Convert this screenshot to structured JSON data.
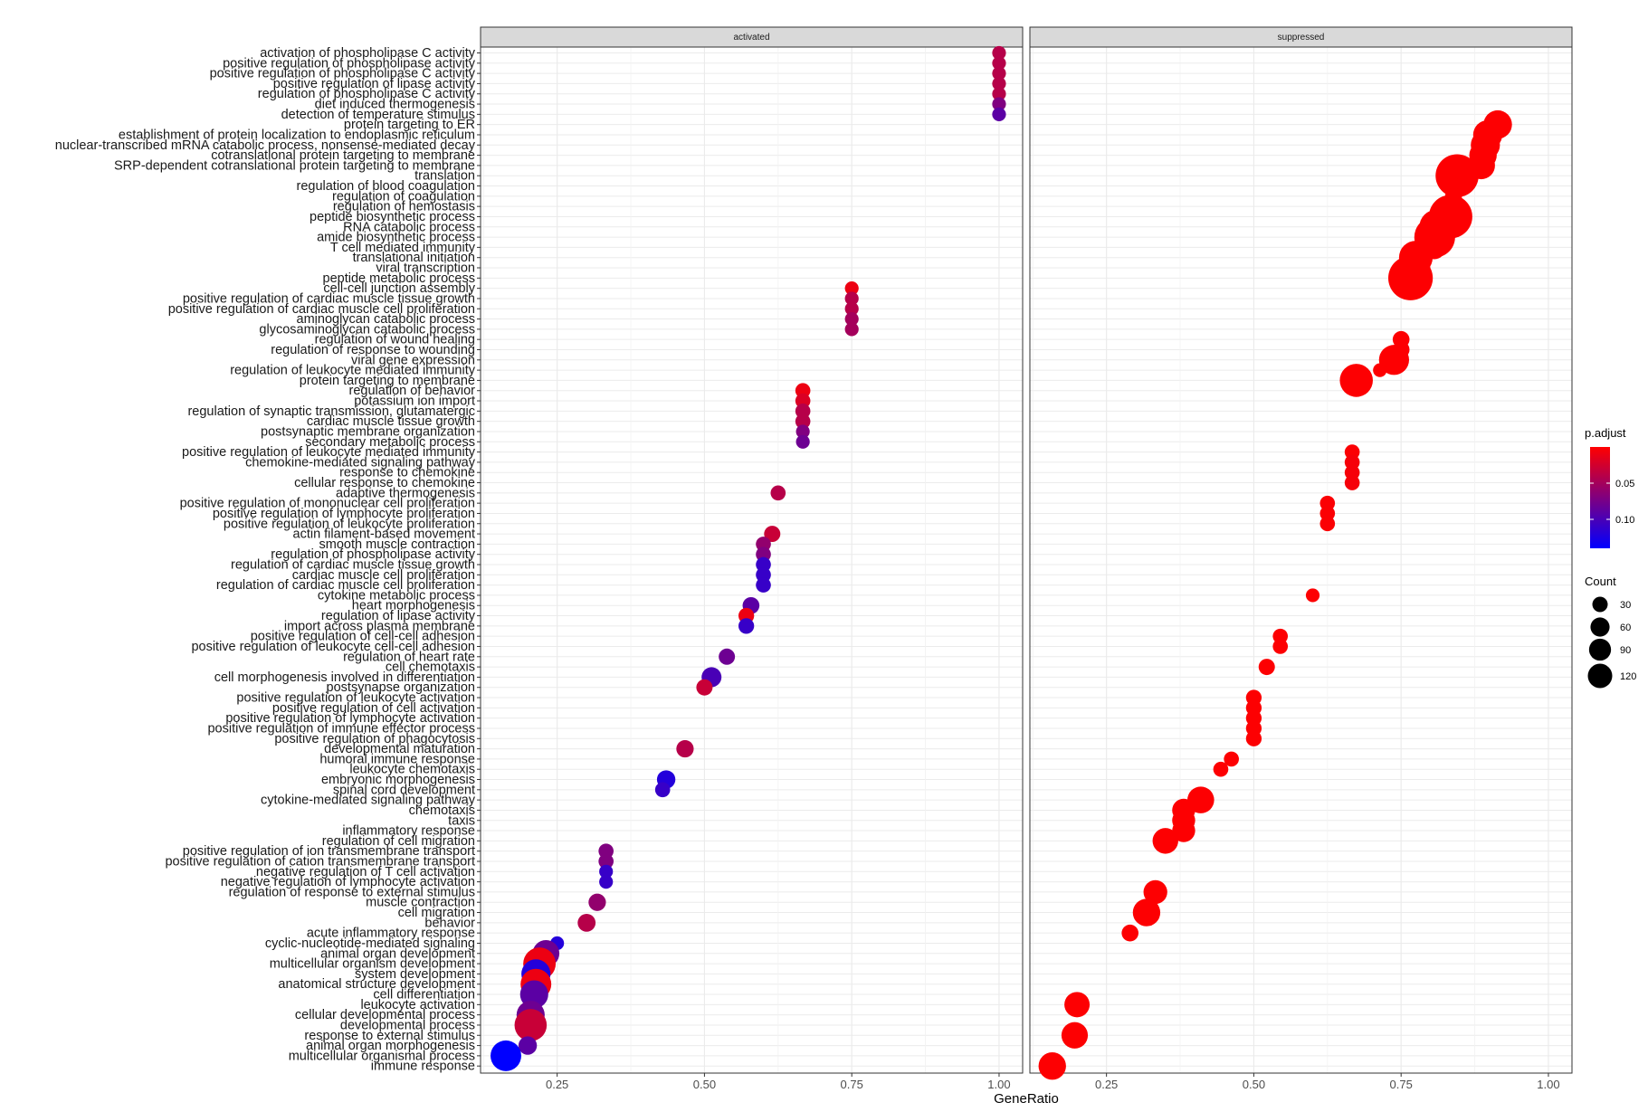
{
  "chart_data": {
    "type": "scatter",
    "facets": [
      "activated",
      "suppressed"
    ],
    "xlabel": "GeneRatio",
    "xlim": [
      0.12,
      1.04
    ],
    "xticks": [
      0.25,
      0.5,
      0.75,
      1.0
    ],
    "xtick_labels": [
      "0.25",
      "0.50",
      "0.75",
      "1.00"
    ],
    "terms": [
      "activation of phospholipase C activity",
      "positive regulation of phospholipase activity",
      "positive regulation of phospholipase C activity",
      "positive regulation of lipase activity",
      "regulation of phospholipase C activity",
      "diet induced thermogenesis",
      "detection of temperature stimulus",
      "protein targeting to ER",
      "establishment of protein localization to endoplasmic reticulum",
      "nuclear-transcribed mRNA catabolic process, nonsense-mediated decay",
      "cotranslational protein targeting to membrane",
      "SRP-dependent cotranslational protein targeting to membrane",
      "translation",
      "regulation of blood coagulation",
      "regulation of coagulation",
      "regulation of hemostasis",
      "peptide biosynthetic process",
      "RNA catabolic process",
      "amide biosynthetic process",
      "T cell mediated immunity",
      "translational initiation",
      "viral transcription",
      "peptide metabolic process",
      "cell-cell junction assembly",
      "positive regulation of cardiac muscle tissue growth",
      "positive regulation of cardiac muscle cell proliferation",
      "aminoglycan catabolic process",
      "glycosaminoglycan catabolic process",
      "regulation of wound healing",
      "regulation of response to wounding",
      "viral gene expression",
      "regulation of leukocyte mediated immunity",
      "protein targeting to membrane",
      "regulation of behavior",
      "potassium ion import",
      "regulation of synaptic transmission, glutamatergic",
      "cardiac muscle tissue growth",
      "postsynaptic membrane organization",
      "secondary metabolic process",
      "positive regulation of leukocyte mediated immunity",
      "chemokine-mediated signaling pathway",
      "response to chemokine",
      "cellular response to chemokine",
      "adaptive thermogenesis",
      "positive regulation of mononuclear cell proliferation",
      "positive regulation of lymphocyte proliferation",
      "positive regulation of leukocyte proliferation",
      "actin filament-based movement",
      "smooth muscle contraction",
      "regulation of phospholipase activity",
      "regulation of cardiac muscle tissue growth",
      "cardiac muscle cell proliferation",
      "regulation of cardiac muscle cell proliferation",
      "cytokine metabolic process",
      "heart morphogenesis",
      "regulation of lipase activity",
      "import across plasma membrane",
      "positive regulation of cell-cell adhesion",
      "positive regulation of leukocyte cell-cell adhesion",
      "regulation of heart rate",
      "cell chemotaxis",
      "cell morphogenesis involved in differentiation",
      "postsynapse organization",
      "positive regulation of leukocyte activation",
      "positive regulation of cell activation",
      "positive regulation of lymphocyte activation",
      "positive regulation of immune effector process",
      "positive regulation of phagocytosis",
      "developmental maturation",
      "humoral immune response",
      "leukocyte chemotaxis",
      "embryonic morphogenesis",
      "spinal cord development",
      "cytokine-mediated signaling pathway",
      "chemotaxis",
      "taxis",
      "inflammatory response",
      "regulation of cell migration",
      "positive regulation of ion transmembrane transport",
      "positive regulation of cation transmembrane transport",
      "negative regulation of T cell activation",
      "negative regulation of lymphocyte activation",
      "regulation of response to external stimulus",
      "muscle contraction",
      "cell migration",
      "behavior",
      "acute inflammatory response",
      "cyclic-nucleotide-mediated signaling",
      "animal organ development",
      "multicellular organism development",
      "system development",
      "anatomical structure development",
      "cell differentiation",
      "leukocyte activation",
      "cellular developmental process",
      "developmental process",
      "response to external stimulus",
      "animal organ morphogenesis",
      "multicellular organismal process",
      "immune response"
    ],
    "series": [
      {
        "name": "activated",
        "points": [
          {
            "term": 0,
            "x": 1.0,
            "count": 10,
            "padj": 0.04
          },
          {
            "term": 1,
            "x": 1.0,
            "count": 10,
            "padj": 0.04
          },
          {
            "term": 2,
            "x": 1.0,
            "count": 10,
            "padj": 0.04
          },
          {
            "term": 3,
            "x": 1.0,
            "count": 10,
            "padj": 0.04
          },
          {
            "term": 4,
            "x": 1.0,
            "count": 10,
            "padj": 0.04
          },
          {
            "term": 5,
            "x": 1.0,
            "count": 10,
            "padj": 0.07
          },
          {
            "term": 6,
            "x": 1.0,
            "count": 10,
            "padj": 0.09
          },
          {
            "term": 23,
            "x": 0.75,
            "count": 10,
            "padj": 0.01
          },
          {
            "term": 24,
            "x": 0.75,
            "count": 10,
            "padj": 0.04
          },
          {
            "term": 25,
            "x": 0.75,
            "count": 10,
            "padj": 0.04
          },
          {
            "term": 26,
            "x": 0.75,
            "count": 10,
            "padj": 0.05
          },
          {
            "term": 27,
            "x": 0.75,
            "count": 10,
            "padj": 0.05
          },
          {
            "term": 33,
            "x": 0.667,
            "count": 12,
            "padj": 0.01
          },
          {
            "term": 34,
            "x": 0.667,
            "count": 12,
            "padj": 0.02
          },
          {
            "term": 35,
            "x": 0.667,
            "count": 12,
            "padj": 0.04
          },
          {
            "term": 36,
            "x": 0.667,
            "count": 12,
            "padj": 0.04
          },
          {
            "term": 37,
            "x": 0.667,
            "count": 10,
            "padj": 0.07
          },
          {
            "term": 38,
            "x": 0.667,
            "count": 10,
            "padj": 0.08
          },
          {
            "term": 43,
            "x": 0.625,
            "count": 12,
            "padj": 0.04
          },
          {
            "term": 47,
            "x": 0.615,
            "count": 14,
            "padj": 0.03
          },
          {
            "term": 48,
            "x": 0.6,
            "count": 12,
            "padj": 0.06
          },
          {
            "term": 49,
            "x": 0.6,
            "count": 12,
            "padj": 0.07
          },
          {
            "term": 50,
            "x": 0.6,
            "count": 12,
            "padj": 0.11
          },
          {
            "term": 51,
            "x": 0.6,
            "count": 12,
            "padj": 0.11
          },
          {
            "term": 52,
            "x": 0.6,
            "count": 12,
            "padj": 0.11
          },
          {
            "term": 54,
            "x": 0.579,
            "count": 15,
            "padj": 0.09
          },
          {
            "term": 55,
            "x": 0.571,
            "count": 13,
            "padj": 0.01
          },
          {
            "term": 56,
            "x": 0.571,
            "count": 13,
            "padj": 0.11
          },
          {
            "term": 59,
            "x": 0.538,
            "count": 14,
            "padj": 0.08
          },
          {
            "term": 61,
            "x": 0.512,
            "count": 21,
            "padj": 0.1
          },
          {
            "term": 62,
            "x": 0.5,
            "count": 14,
            "padj": 0.03
          },
          {
            "term": 68,
            "x": 0.467,
            "count": 16,
            "padj": 0.04
          },
          {
            "term": 71,
            "x": 0.435,
            "count": 18,
            "padj": 0.12
          },
          {
            "term": 72,
            "x": 0.429,
            "count": 12,
            "padj": 0.11
          },
          {
            "term": 78,
            "x": 0.333,
            "count": 12,
            "padj": 0.07
          },
          {
            "term": 79,
            "x": 0.333,
            "count": 12,
            "padj": 0.07
          },
          {
            "term": 80,
            "x": 0.333,
            "count": 10,
            "padj": 0.11
          },
          {
            "term": 81,
            "x": 0.333,
            "count": 10,
            "padj": 0.11
          },
          {
            "term": 83,
            "x": 0.318,
            "count": 16,
            "padj": 0.06
          },
          {
            "term": 85,
            "x": 0.3,
            "count": 17,
            "padj": 0.04
          },
          {
            "term": 87,
            "x": 0.25,
            "count": 10,
            "padj": 0.12
          },
          {
            "term": 88,
            "x": 0.231,
            "count": 38,
            "padj": 0.08
          },
          {
            "term": 89,
            "x": 0.22,
            "count": 56,
            "padj": 0.01
          },
          {
            "term": 90,
            "x": 0.214,
            "count": 45,
            "padj": 0.12
          },
          {
            "term": 91,
            "x": 0.214,
            "count": 50,
            "padj": 0.01
          },
          {
            "term": 92,
            "x": 0.211,
            "count": 42,
            "padj": 0.09
          },
          {
            "term": 94,
            "x": 0.205,
            "count": 42,
            "padj": 0.08
          },
          {
            "term": 95,
            "x": 0.205,
            "count": 55,
            "padj": 0.03
          },
          {
            "term": 97,
            "x": 0.2,
            "count": 18,
            "padj": 0.09
          },
          {
            "term": 98,
            "x": 0.163,
            "count": 50,
            "padj": 0.14
          }
        ]
      },
      {
        "name": "suppressed",
        "points": [
          {
            "term": 7,
            "x": 0.914,
            "count": 43,
            "padj": 0.001
          },
          {
            "term": 8,
            "x": 0.897,
            "count": 45,
            "padj": 0.001
          },
          {
            "term": 9,
            "x": 0.893,
            "count": 45,
            "padj": 0.001
          },
          {
            "term": 10,
            "x": 0.889,
            "count": 40,
            "padj": 0.001
          },
          {
            "term": 11,
            "x": 0.886,
            "count": 40,
            "padj": 0.001
          },
          {
            "term": 12,
            "x": 0.845,
            "count": 98,
            "padj": 0.001
          },
          {
            "term": 13,
            "x": 0.839,
            "count": 15,
            "padj": 0.001
          },
          {
            "term": 14,
            "x": 0.839,
            "count": 15,
            "padj": 0.001
          },
          {
            "term": 15,
            "x": 0.839,
            "count": 15,
            "padj": 0.001
          },
          {
            "term": 16,
            "x": 0.834,
            "count": 100,
            "padj": 0.001
          },
          {
            "term": 17,
            "x": 0.81,
            "count": 62,
            "padj": 0.001
          },
          {
            "term": 18,
            "x": 0.807,
            "count": 88,
            "padj": 0.001
          },
          {
            "term": 19,
            "x": 0.806,
            "count": 30,
            "padj": 0.001
          },
          {
            "term": 20,
            "x": 0.775,
            "count": 60,
            "padj": 0.001
          },
          {
            "term": 21,
            "x": 0.771,
            "count": 60,
            "padj": 0.001
          },
          {
            "term": 22,
            "x": 0.766,
            "count": 105,
            "padj": 0.001
          },
          {
            "term": 28,
            "x": 0.75,
            "count": 15,
            "padj": 0.001
          },
          {
            "term": 29,
            "x": 0.75,
            "count": 15,
            "padj": 0.001
          },
          {
            "term": 30,
            "x": 0.738,
            "count": 48,
            "padj": 0.001
          },
          {
            "term": 31,
            "x": 0.714,
            "count": 10,
            "padj": 0.001
          },
          {
            "term": 32,
            "x": 0.674,
            "count": 58,
            "padj": 0.001
          },
          {
            "term": 39,
            "x": 0.667,
            "count": 12,
            "padj": 0.002
          },
          {
            "term": 40,
            "x": 0.667,
            "count": 12,
            "padj": 0.005
          },
          {
            "term": 41,
            "x": 0.667,
            "count": 12,
            "padj": 0.005
          },
          {
            "term": 42,
            "x": 0.667,
            "count": 12,
            "padj": 0.005
          },
          {
            "term": 44,
            "x": 0.625,
            "count": 12,
            "padj": 0.002
          },
          {
            "term": 45,
            "x": 0.625,
            "count": 12,
            "padj": 0.002
          },
          {
            "term": 46,
            "x": 0.625,
            "count": 12,
            "padj": 0.002
          },
          {
            "term": 53,
            "x": 0.6,
            "count": 10,
            "padj": 0.001
          },
          {
            "term": 57,
            "x": 0.545,
            "count": 12,
            "padj": 0.001
          },
          {
            "term": 58,
            "x": 0.545,
            "count": 12,
            "padj": 0.001
          },
          {
            "term": 60,
            "x": 0.522,
            "count": 14,
            "padj": 0.001
          },
          {
            "term": 63,
            "x": 0.5,
            "count": 13,
            "padj": 0.001
          },
          {
            "term": 64,
            "x": 0.5,
            "count": 13,
            "padj": 0.001
          },
          {
            "term": 65,
            "x": 0.5,
            "count": 13,
            "padj": 0.001
          },
          {
            "term": 66,
            "x": 0.5,
            "count": 13,
            "padj": 0.001
          },
          {
            "term": 67,
            "x": 0.5,
            "count": 13,
            "padj": 0.001
          },
          {
            "term": 69,
            "x": 0.462,
            "count": 12,
            "padj": 0.001
          },
          {
            "term": 70,
            "x": 0.444,
            "count": 12,
            "padj": 0.001
          },
          {
            "term": 73,
            "x": 0.41,
            "count": 38,
            "padj": 0.001
          },
          {
            "term": 74,
            "x": 0.381,
            "count": 28,
            "padj": 0.001
          },
          {
            "term": 75,
            "x": 0.381,
            "count": 28,
            "padj": 0.001
          },
          {
            "term": 76,
            "x": 0.381,
            "count": 28,
            "padj": 0.001
          },
          {
            "term": 77,
            "x": 0.35,
            "count": 35,
            "padj": 0.001
          },
          {
            "term": 82,
            "x": 0.333,
            "count": 30,
            "padj": 0.001
          },
          {
            "term": 84,
            "x": 0.318,
            "count": 40,
            "padj": 0.001
          },
          {
            "term": 86,
            "x": 0.29,
            "count": 15,
            "padj": 0.001
          },
          {
            "term": 93,
            "x": 0.2,
            "count": 34,
            "padj": 0.001
          },
          {
            "term": 96,
            "x": 0.196,
            "count": 37,
            "padj": 0.001
          },
          {
            "term": 99,
            "x": 0.158,
            "count": 40,
            "padj": 0.001
          }
        ]
      }
    ],
    "color_legend": {
      "title": "p.adjust",
      "ticks": [
        0.05,
        0.1
      ],
      "tick_labels": [
        "0.05",
        "0.10"
      ],
      "range": [
        0.0,
        0.14
      ],
      "low_color": "#FF0000",
      "high_color": "#0000FF"
    },
    "size_legend": {
      "title": "Count",
      "values": [
        30,
        60,
        90,
        120
      ],
      "labels": [
        "30",
        "60",
        "90",
        "120"
      ]
    },
    "legend_position": "right",
    "grid": true,
    "panel_background": "#FFFFFF",
    "strip_background": "#D9D9D9"
  }
}
